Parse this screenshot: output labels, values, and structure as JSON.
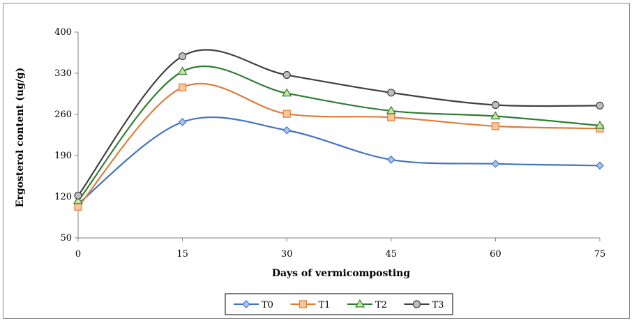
{
  "chart_data": {
    "type": "line",
    "title": "",
    "xlabel": "Days of vermicomposting",
    "ylabel": "Ergosterol content (ug/g)",
    "x": [
      0,
      15,
      30,
      45,
      60,
      75
    ],
    "xticks": [
      "0",
      "15",
      "30",
      "45",
      "60",
      "75"
    ],
    "yticks": [
      "50",
      "120",
      "190",
      "260",
      "330",
      "400"
    ],
    "ylim": [
      50,
      400
    ],
    "grid": false,
    "legend_position": "bottom",
    "smooth": true,
    "series": [
      {
        "name": "T0",
        "values": [
          108,
          247,
          233,
          183,
          176,
          173
        ],
        "color": "#4472C4",
        "marker": "diamond",
        "fill": "#a9c4ee"
      },
      {
        "name": "T1",
        "values": [
          103,
          306,
          261,
          255,
          240,
          236
        ],
        "color": "#E07B39",
        "marker": "square",
        "fill": "#f8c79b"
      },
      {
        "name": "T2",
        "values": [
          113,
          333,
          296,
          266,
          257,
          241
        ],
        "color": "#2E7D32",
        "marker": "triangle",
        "fill": "#c8e6a0"
      },
      {
        "name": "T3",
        "values": [
          122,
          359,
          327,
          297,
          276,
          275
        ],
        "color": "#404040",
        "marker": "circle",
        "fill": "#bfbfbf"
      }
    ]
  }
}
